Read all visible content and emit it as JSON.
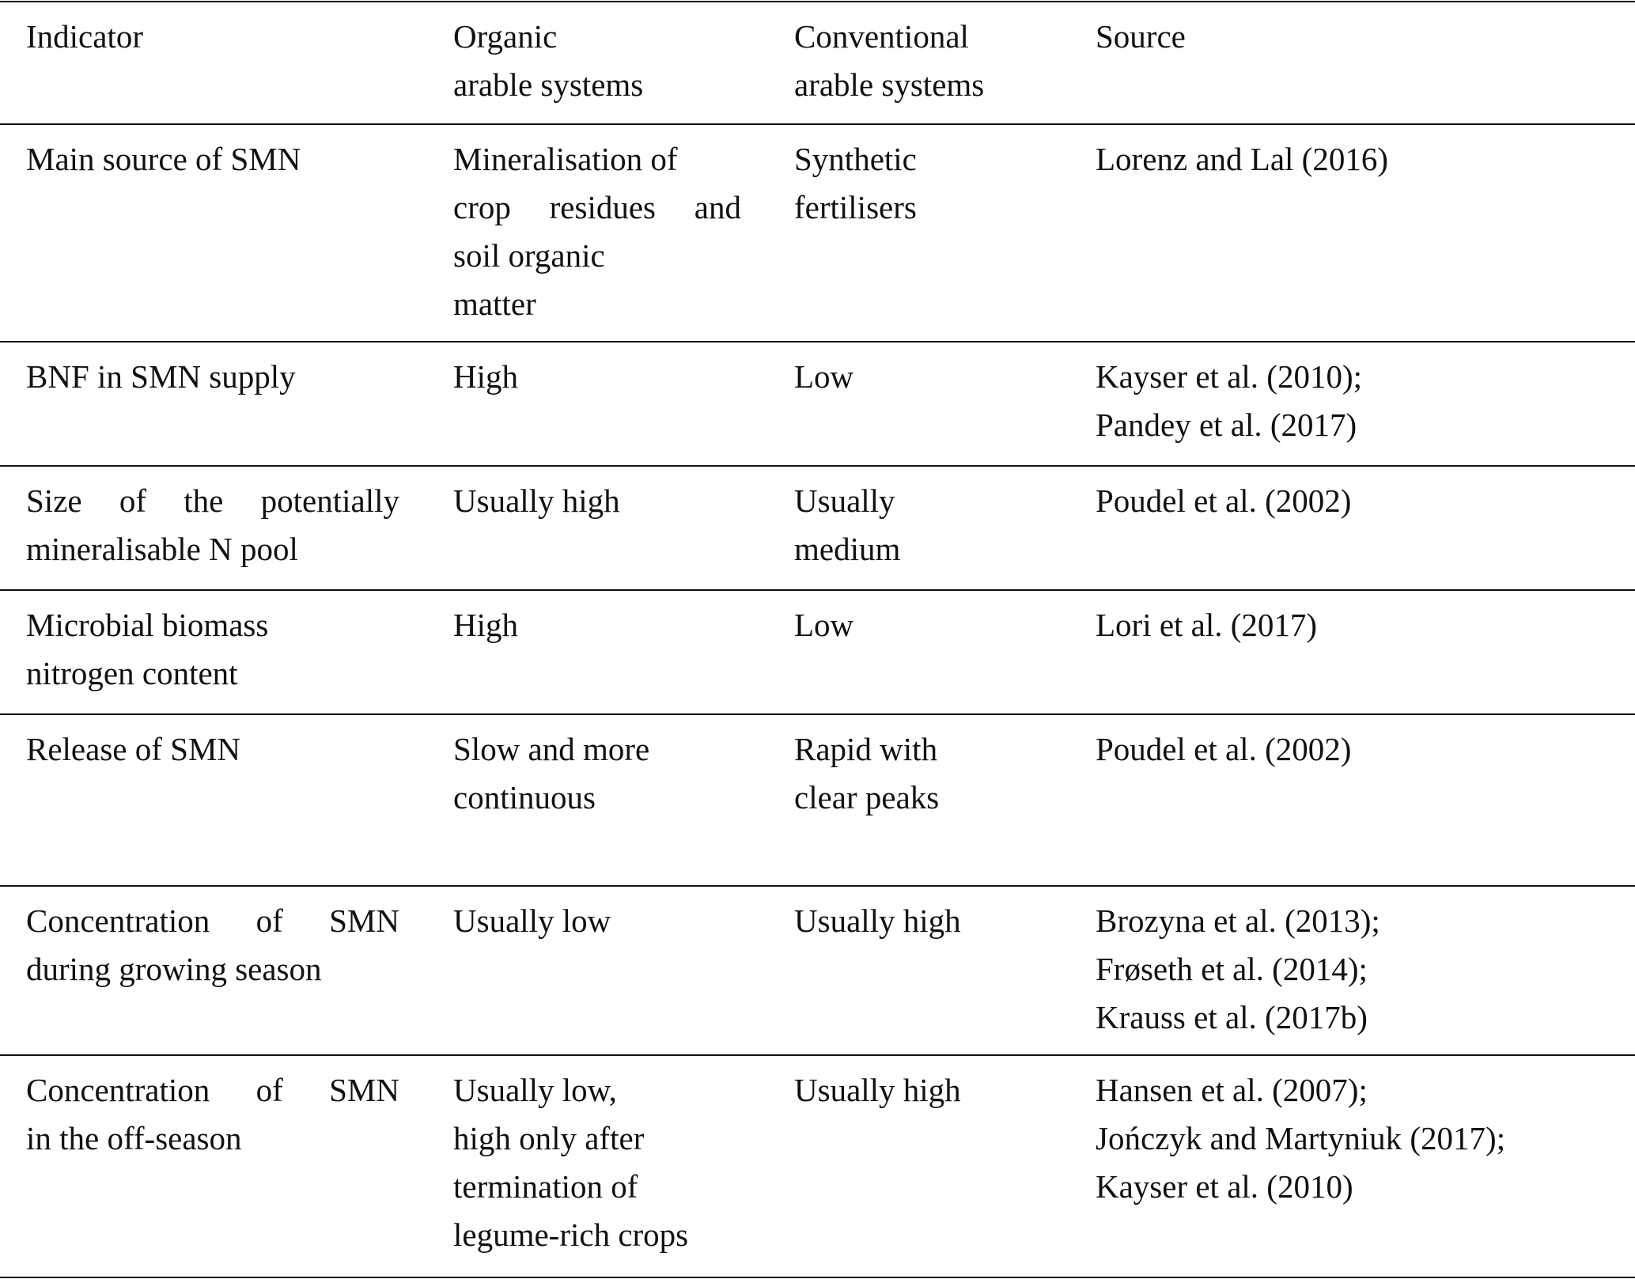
{
  "table": {
    "headers": [
      [
        "Indicator"
      ],
      [
        "Organic",
        "arable systems"
      ],
      [
        "Conventional",
        "arable systems"
      ],
      [
        "Source"
      ]
    ],
    "rows": [
      [
        [
          "Main source of SMN"
        ],
        [
          "Mineralisation of",
          "crop residues and",
          "soil organic",
          "matter"
        ],
        [
          "Synthetic",
          "fertilisers"
        ],
        [
          "Lorenz and Lal (2016)"
        ]
      ],
      [
        [
          "BNF in SMN supply"
        ],
        [
          "High"
        ],
        [
          "Low"
        ],
        [
          "Kayser et al. (2010);",
          "Pandey et al. (2017)"
        ]
      ],
      [
        [
          "Size of the potentially",
          "mineralisable N pool"
        ],
        [
          "Usually high"
        ],
        [
          "Usually",
          "medium"
        ],
        [
          "Poudel et al. (2002)"
        ]
      ],
      [
        [
          "Microbial biomass",
          "nitrogen content"
        ],
        [
          "High"
        ],
        [
          "Low"
        ],
        [
          "Lori et al. (2017)"
        ]
      ],
      [
        [
          "Release of SMN"
        ],
        [
          "Slow and more",
          "continuous"
        ],
        [
          "Rapid with",
          "clear peaks"
        ],
        [
          "Poudel et al. (2002)"
        ]
      ],
      [
        [
          "Concentration of SMN",
          "during growing season"
        ],
        [
          "Usually low"
        ],
        [
          "Usually high"
        ],
        [
          "Brozyna et al. (2013);",
          "Frøseth et al. (2014);",
          "Krauss et al. (2017b)"
        ]
      ],
      [
        [
          "Concentration of SMN",
          "in the off-season"
        ],
        [
          "Usually low,",
          "high only after",
          "termination of",
          "legume-rich crops"
        ],
        [
          "Usually high"
        ],
        [
          "Hansen et al. (2007);",
          "Jończyk and Martyniuk (2017);",
          "Kayser et al. (2010)"
        ]
      ]
    ]
  }
}
